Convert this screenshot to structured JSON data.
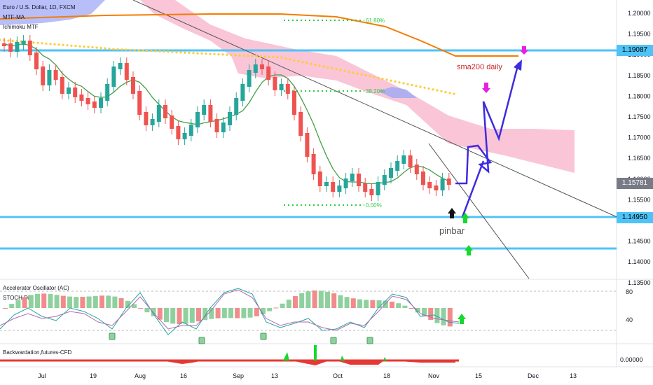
{
  "legend": {
    "symbol_line": "Euro / U.S. Dollar, 1D, FXCM",
    "indicator_1": "MTF-MA",
    "indicator_2": "Ichimoku MTF"
  },
  "annotations": {
    "fib_618": "61.80%",
    "fib_382": "38.20%",
    "fib_0": "0.00%",
    "sma200": "sma200 daily",
    "pinbar": "pinbar"
  },
  "oscillator_pane": {
    "title_1": "Accelerator Oscillator (AC)",
    "title_2": "STOCH Div",
    "level_high": "80",
    "level_low": "40"
  },
  "bottom_pane": {
    "title": "Backwardation,futures-CFD",
    "zero_label": "0.00000"
  },
  "price_labels": {
    "resistance": "1.19087",
    "current": "1.15781",
    "support": "1.14950"
  },
  "colors": {
    "bull": "#26a69a",
    "bear": "#ef5350",
    "level_line": "#4fc3f7",
    "cloud_bear": "#f8bbd0",
    "cloud_bull": "#9fa8f5",
    "sma200": "#f57c00",
    "projection": "#3d2be0",
    "arrow_magenta": "#e91ee6",
    "arrow_green": "#17d82f"
  },
  "chart_data": {
    "type": "candlestick",
    "price_axis": {
      "ylim": [
        1.133,
        1.203
      ],
      "ticks": [
        "1.20000",
        "1.19500",
        "1.19000",
        "1.18500",
        "1.18000",
        "1.17500",
        "1.17000",
        "1.16500",
        "1.16000",
        "1.15500",
        "1.15000",
        "1.14500",
        "1.14000",
        "1.13500"
      ]
    },
    "time_axis": {
      "ticks": [
        "Jul",
        "19",
        "Aug",
        "16",
        "Sep",
        "13",
        "Oct",
        "18",
        "Nov",
        "15",
        "Dec",
        "13"
      ]
    },
    "horizontal_levels": [
      1.19087,
      1.1495,
      1.1413
    ],
    "current_price": 1.15781,
    "fibonacci": [
      {
        "label": "61.80%",
        "price": 1.1987
      },
      {
        "label": "38.20%",
        "price": 1.1818
      },
      {
        "label": "0.00%",
        "price": 1.1527
      }
    ]
  }
}
